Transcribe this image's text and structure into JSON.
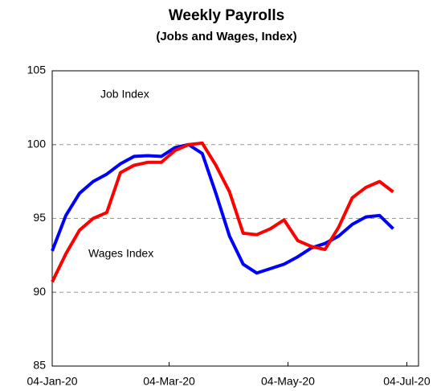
{
  "chart_data": {
    "type": "line",
    "title": "Weekly Payrolls",
    "subtitle": "(Jobs and Wages, Index)",
    "x": [
      "2020-01-04",
      "2020-01-11",
      "2020-01-18",
      "2020-01-25",
      "2020-02-01",
      "2020-02-08",
      "2020-02-15",
      "2020-02-22",
      "2020-02-29",
      "2020-03-07",
      "2020-03-14",
      "2020-03-21",
      "2020-03-28",
      "2020-04-04",
      "2020-04-11",
      "2020-04-18",
      "2020-04-25",
      "2020-05-02",
      "2020-05-09",
      "2020-05-16",
      "2020-05-23",
      "2020-05-30",
      "2020-06-06",
      "2020-06-13",
      "2020-06-20",
      "2020-06-27"
    ],
    "series": [
      {
        "name": "Job Index",
        "color": "#0000ff",
        "values": [
          92.8,
          95.2,
          96.7,
          97.5,
          98.0,
          98.7,
          99.2,
          99.25,
          99.2,
          99.8,
          100.0,
          99.4,
          96.7,
          93.8,
          91.9,
          91.3,
          91.6,
          91.9,
          92.4,
          93.0,
          93.3,
          93.8,
          94.6,
          95.1,
          95.2,
          94.3
        ]
      },
      {
        "name": "Wages Index",
        "color": "#ff0000",
        "values": [
          90.7,
          92.6,
          94.2,
          95.0,
          95.4,
          98.1,
          98.6,
          98.8,
          98.8,
          99.6,
          100.0,
          100.1,
          98.6,
          96.8,
          94.0,
          93.9,
          94.3,
          94.9,
          93.5,
          93.1,
          92.9,
          94.4,
          96.4,
          97.1,
          97.5,
          96.8
        ]
      }
    ],
    "xlim": [
      "2020-01-04",
      "2020-07-10"
    ],
    "xticks": [
      {
        "value": "2020-01-04",
        "label": "04-Jan-20"
      },
      {
        "value": "2020-03-04",
        "label": "04-Mar-20"
      },
      {
        "value": "2020-05-04",
        "label": "04-May-20"
      },
      {
        "value": "2020-07-04",
        "label": "04-Jul-20"
      }
    ],
    "ylim": [
      85,
      105
    ],
    "yticks": [
      85,
      90,
      95,
      100,
      105
    ],
    "grid": true
  }
}
